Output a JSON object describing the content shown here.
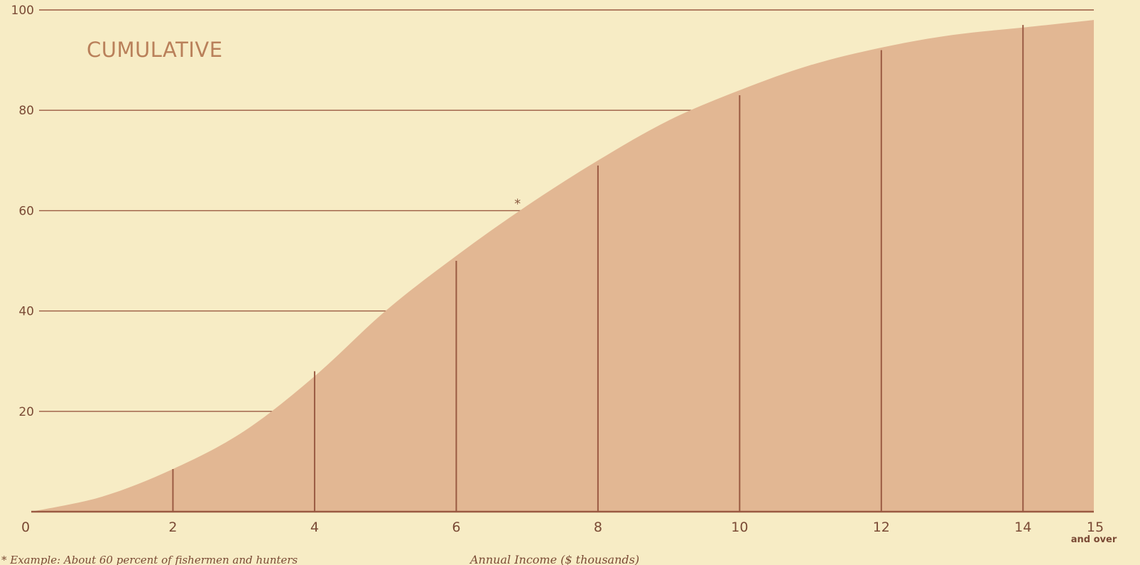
{
  "chart_data": {
    "type": "area",
    "title": "CUMULATIVE",
    "xlabel": "Annual Income ($ thousands)",
    "ylabel": "",
    "xlim": [
      0,
      15
    ],
    "ylim": [
      0,
      100
    ],
    "y_ticks": [
      {
        "value": 100,
        "label": "100"
      },
      {
        "value": 80,
        "label": "80"
      },
      {
        "value": 60,
        "label": "60"
      },
      {
        "value": 40,
        "label": "40"
      },
      {
        "value": 20,
        "label": "20"
      }
    ],
    "x_ticks": [
      {
        "value": 0,
        "label": "0"
      },
      {
        "value": 2,
        "label": "2"
      },
      {
        "value": 4,
        "label": "4"
      },
      {
        "value": 6,
        "label": "6"
      },
      {
        "value": 8,
        "label": "8"
      },
      {
        "value": 10,
        "label": "10"
      },
      {
        "value": 12,
        "label": "12"
      },
      {
        "value": 14,
        "label": "14"
      },
      {
        "value": 15,
        "label": "15",
        "sublabel": "and over"
      }
    ],
    "x": [
      0,
      1,
      2,
      3,
      4,
      5,
      6,
      7,
      8,
      9,
      10,
      11,
      12,
      13,
      14,
      15
    ],
    "y": [
      0,
      3,
      8.5,
      16,
      27,
      40,
      51,
      61,
      70,
      78,
      84,
      89,
      92.5,
      95,
      96.5,
      98
    ],
    "bar_lines": [
      {
        "x": 2,
        "y": 8.5
      },
      {
        "x": 4,
        "y": 28
      },
      {
        "x": 6,
        "y": 50
      },
      {
        "x": 8,
        "y": 69
      },
      {
        "x": 10,
        "y": 83
      },
      {
        "x": 12,
        "y": 92
      },
      {
        "x": 14,
        "y": 97
      }
    ],
    "example_marker": {
      "x": 6.9,
      "y": 60,
      "symbol": "*"
    },
    "footnote": "* Example: About 60 percent of fishermen and hunters",
    "colors": {
      "background": "#f7ecc5",
      "fill": "#e2b793",
      "lines": "#9a5a42",
      "title": "#b9805a"
    }
  }
}
